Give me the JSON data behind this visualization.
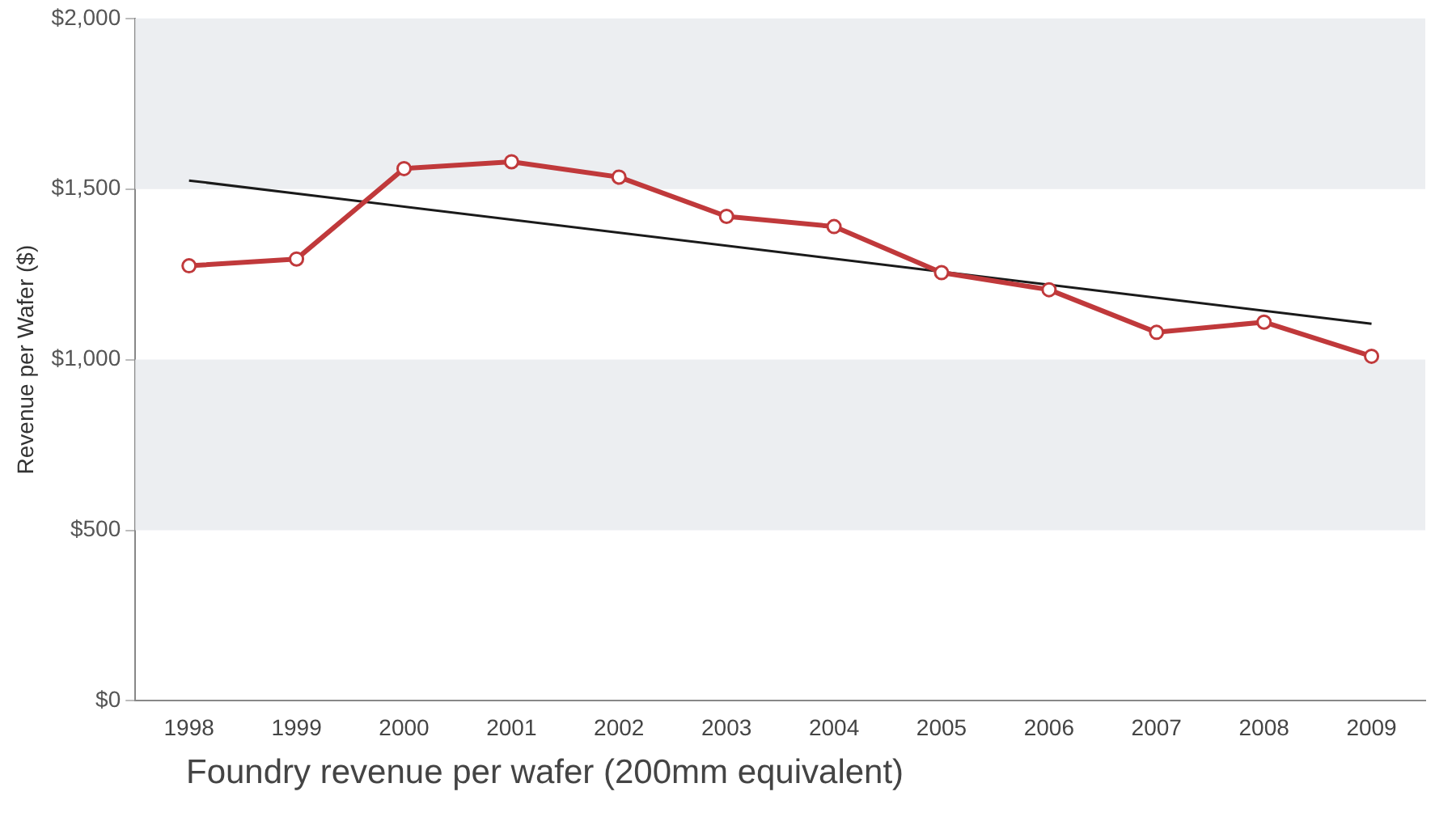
{
  "chart_data": {
    "type": "line",
    "title": "Foundry revenue per wafer (200mm equivalent)",
    "ylabel": "Revenue per Wafer ($)",
    "categories": [
      "1998",
      "1999",
      "2000",
      "2001",
      "2002",
      "2003",
      "2004",
      "2005",
      "2006",
      "2007",
      "2008",
      "2009"
    ],
    "series": [
      {
        "color": "#c0393b",
        "marker": "circle",
        "values": [
          1275,
          1295,
          1560,
          1580,
          1535,
          1420,
          1390,
          1255,
          1205,
          1080,
          1110,
          1010
        ]
      },
      {
        "color": "#1a1a1a",
        "marker": "none",
        "values": [
          1525,
          null,
          null,
          null,
          null,
          null,
          null,
          null,
          null,
          null,
          null,
          1105
        ]
      }
    ],
    "ylim": [
      0,
      2000
    ],
    "yticks": [
      {
        "value": 0,
        "label": "$0"
      },
      {
        "value": 500,
        "label": "$500"
      },
      {
        "value": 1000,
        "label": "$1,000"
      },
      {
        "value": 1500,
        "label": "$1,500"
      },
      {
        "value": 2000,
        "label": "$2,000"
      }
    ],
    "bands": [
      {
        "axis": "y",
        "from": 500,
        "to": 1000,
        "color": "#eceef1"
      },
      {
        "axis": "y",
        "from": 1500,
        "to": 2000,
        "color": "#eceef1"
      }
    ],
    "grid": false,
    "legend": false
  }
}
